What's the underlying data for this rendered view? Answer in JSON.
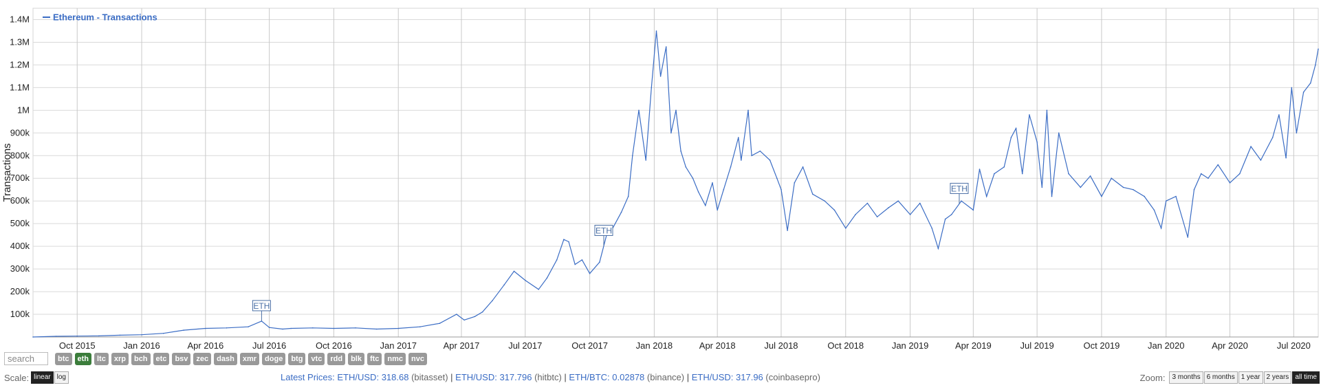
{
  "legend": {
    "label": "Ethereum - Transactions",
    "color": "#3a6cc4"
  },
  "search": {
    "placeholder": "search"
  },
  "coins": [
    "btc",
    "eth",
    "ltc",
    "xrp",
    "bch",
    "etc",
    "bsv",
    "zec",
    "dash",
    "xmr",
    "doge",
    "btg",
    "vtc",
    "rdd",
    "blk",
    "ftc",
    "nmc",
    "nvc"
  ],
  "active_coin": "eth",
  "scale": {
    "label": "Scale:",
    "options": [
      "linear",
      "log"
    ],
    "active": "linear"
  },
  "prices": {
    "label": "Latest Prices:",
    "items": [
      {
        "pair": "ETH/USD:",
        "value": "318.68",
        "exchange": "(bitasset)"
      },
      {
        "pair": "ETH/USD:",
        "value": "317.796",
        "exchange": "(hitbtc)"
      },
      {
        "pair": "ETH/BTC:",
        "value": "0.02878",
        "exchange": "(binance)"
      },
      {
        "pair": "ETH/USD:",
        "value": "317.96",
        "exchange": "(coinbasepro)"
      }
    ]
  },
  "zoom": {
    "label": "Zoom:",
    "options": [
      "3 months",
      "6 months",
      "1 year",
      "2 years",
      "all time"
    ],
    "active": "all time"
  },
  "chart_data": {
    "type": "line",
    "title": "",
    "ylabel": "Transactions",
    "ylim": [
      0,
      1450000
    ],
    "yticks": [
      100000,
      200000,
      300000,
      400000,
      500000,
      600000,
      700000,
      800000,
      900000,
      1000000,
      1100000,
      1200000,
      1300000,
      1400000
    ],
    "ytick_labels": [
      "100k",
      "200k",
      "300k",
      "400k",
      "500k",
      "600k",
      "700k",
      "800k",
      "900k",
      "1M",
      "1.1M",
      "1.2M",
      "1.3M",
      "1.4M"
    ],
    "xlim": [
      "2015-07-30",
      "2020-08-05"
    ],
    "xtick_labels": [
      "Oct 2015",
      "Jan 2016",
      "Apr 2016",
      "Jul 2016",
      "Oct 2016",
      "Jan 2017",
      "Apr 2017",
      "Jul 2017",
      "Oct 2017",
      "Jan 2018",
      "Apr 2018",
      "Jul 2018",
      "Oct 2018",
      "Jan 2019",
      "Apr 2019",
      "Jul 2019",
      "Oct 2019",
      "Jan 2020",
      "Apr 2020",
      "Jul 2020"
    ],
    "xtick_dates": [
      "2015-10-01",
      "2016-01-01",
      "2016-04-01",
      "2016-07-01",
      "2016-10-01",
      "2017-01-01",
      "2017-04-01",
      "2017-07-01",
      "2017-10-01",
      "2018-01-01",
      "2018-04-01",
      "2018-07-01",
      "2018-10-01",
      "2019-01-01",
      "2019-04-01",
      "2019-07-01",
      "2019-10-01",
      "2020-01-01",
      "2020-04-01",
      "2020-07-01"
    ],
    "grid": true,
    "legend_position": "top-left",
    "series": [
      {
        "name": "Ethereum - Transactions",
        "color": "#3a6cc4",
        "points": [
          [
            "2015-07-30",
            0
          ],
          [
            "2015-09-01",
            3000
          ],
          [
            "2015-10-01",
            4000
          ],
          [
            "2015-11-01",
            5000
          ],
          [
            "2015-12-01",
            8000
          ],
          [
            "2016-01-01",
            10000
          ],
          [
            "2016-02-01",
            16000
          ],
          [
            "2016-03-01",
            30000
          ],
          [
            "2016-04-01",
            38000
          ],
          [
            "2016-05-01",
            40000
          ],
          [
            "2016-06-01",
            45000
          ],
          [
            "2016-06-20",
            70000
          ],
          [
            "2016-07-01",
            42000
          ],
          [
            "2016-07-20",
            35000
          ],
          [
            "2016-08-01",
            38000
          ],
          [
            "2016-09-01",
            40000
          ],
          [
            "2016-10-01",
            38000
          ],
          [
            "2016-11-01",
            40000
          ],
          [
            "2016-12-01",
            35000
          ],
          [
            "2017-01-01",
            38000
          ],
          [
            "2017-02-01",
            45000
          ],
          [
            "2017-03-01",
            60000
          ],
          [
            "2017-03-25",
            100000
          ],
          [
            "2017-04-05",
            75000
          ],
          [
            "2017-04-20",
            90000
          ],
          [
            "2017-05-01",
            110000
          ],
          [
            "2017-05-15",
            160000
          ],
          [
            "2017-06-01",
            230000
          ],
          [
            "2017-06-15",
            290000
          ],
          [
            "2017-07-01",
            250000
          ],
          [
            "2017-07-20",
            210000
          ],
          [
            "2017-08-01",
            260000
          ],
          [
            "2017-08-15",
            340000
          ],
          [
            "2017-08-25",
            430000
          ],
          [
            "2017-09-01",
            420000
          ],
          [
            "2017-09-10",
            320000
          ],
          [
            "2017-09-20",
            340000
          ],
          [
            "2017-10-01",
            280000
          ],
          [
            "2017-10-15",
            330000
          ],
          [
            "2017-10-25",
            450000
          ],
          [
            "2017-11-01",
            470000
          ],
          [
            "2017-11-15",
            550000
          ],
          [
            "2017-11-25",
            620000
          ],
          [
            "2017-12-01",
            800000
          ],
          [
            "2017-12-10",
            1000000
          ],
          [
            "2017-12-20",
            780000
          ],
          [
            "2017-12-28",
            1100000
          ],
          [
            "2018-01-04",
            1350000
          ],
          [
            "2018-01-10",
            1150000
          ],
          [
            "2018-01-18",
            1280000
          ],
          [
            "2018-01-25",
            900000
          ],
          [
            "2018-02-01",
            1000000
          ],
          [
            "2018-02-08",
            820000
          ],
          [
            "2018-02-15",
            750000
          ],
          [
            "2018-02-25",
            700000
          ],
          [
            "2018-03-05",
            640000
          ],
          [
            "2018-03-15",
            580000
          ],
          [
            "2018-03-25",
            680000
          ],
          [
            "2018-04-01",
            560000
          ],
          [
            "2018-04-10",
            650000
          ],
          [
            "2018-04-20",
            750000
          ],
          [
            "2018-05-01",
            880000
          ],
          [
            "2018-05-05",
            780000
          ],
          [
            "2018-05-15",
            1000000
          ],
          [
            "2018-05-20",
            800000
          ],
          [
            "2018-06-01",
            820000
          ],
          [
            "2018-06-15",
            780000
          ],
          [
            "2018-06-25",
            700000
          ],
          [
            "2018-07-01",
            650000
          ],
          [
            "2018-07-10",
            470000
          ],
          [
            "2018-07-20",
            680000
          ],
          [
            "2018-08-01",
            750000
          ],
          [
            "2018-08-15",
            630000
          ],
          [
            "2018-09-01",
            600000
          ],
          [
            "2018-09-15",
            560000
          ],
          [
            "2018-10-01",
            480000
          ],
          [
            "2018-10-15",
            540000
          ],
          [
            "2018-11-01",
            590000
          ],
          [
            "2018-11-15",
            530000
          ],
          [
            "2018-12-01",
            570000
          ],
          [
            "2018-12-15",
            600000
          ],
          [
            "2019-01-01",
            540000
          ],
          [
            "2019-01-15",
            590000
          ],
          [
            "2019-02-01",
            480000
          ],
          [
            "2019-02-10",
            390000
          ],
          [
            "2019-02-20",
            520000
          ],
          [
            "2019-03-01",
            540000
          ],
          [
            "2019-03-15",
            600000
          ],
          [
            "2019-04-01",
            560000
          ],
          [
            "2019-04-10",
            740000
          ],
          [
            "2019-04-20",
            620000
          ],
          [
            "2019-05-01",
            720000
          ],
          [
            "2019-05-15",
            750000
          ],
          [
            "2019-05-25",
            880000
          ],
          [
            "2019-06-01",
            920000
          ],
          [
            "2019-06-10",
            720000
          ],
          [
            "2019-06-20",
            980000
          ],
          [
            "2019-07-01",
            860000
          ],
          [
            "2019-07-08",
            660000
          ],
          [
            "2019-07-15",
            1000000
          ],
          [
            "2019-07-22",
            620000
          ],
          [
            "2019-08-01",
            900000
          ],
          [
            "2019-08-15",
            720000
          ],
          [
            "2019-09-01",
            660000
          ],
          [
            "2019-09-15",
            710000
          ],
          [
            "2019-10-01",
            620000
          ],
          [
            "2019-10-15",
            700000
          ],
          [
            "2019-11-01",
            660000
          ],
          [
            "2019-11-15",
            650000
          ],
          [
            "2019-12-01",
            620000
          ],
          [
            "2019-12-15",
            560000
          ],
          [
            "2019-12-25",
            480000
          ],
          [
            "2020-01-01",
            600000
          ],
          [
            "2020-01-15",
            620000
          ],
          [
            "2020-02-01",
            440000
          ],
          [
            "2020-02-10",
            650000
          ],
          [
            "2020-02-20",
            720000
          ],
          [
            "2020-03-01",
            700000
          ],
          [
            "2020-03-15",
            760000
          ],
          [
            "2020-04-01",
            680000
          ],
          [
            "2020-04-15",
            720000
          ],
          [
            "2020-05-01",
            840000
          ],
          [
            "2020-05-15",
            780000
          ],
          [
            "2020-06-01",
            880000
          ],
          [
            "2020-06-10",
            980000
          ],
          [
            "2020-06-20",
            790000
          ],
          [
            "2020-06-28",
            1100000
          ],
          [
            "2020-07-05",
            900000
          ],
          [
            "2020-07-15",
            1080000
          ],
          [
            "2020-07-25",
            1120000
          ],
          [
            "2020-08-01",
            1200000
          ],
          [
            "2020-08-05",
            1270000
          ]
        ]
      }
    ],
    "annotations": [
      {
        "label": "ETH",
        "date": "2016-06-20"
      },
      {
        "label": "ETH",
        "date": "2017-10-21"
      },
      {
        "label": "ETH",
        "date": "2019-03-12"
      }
    ]
  }
}
